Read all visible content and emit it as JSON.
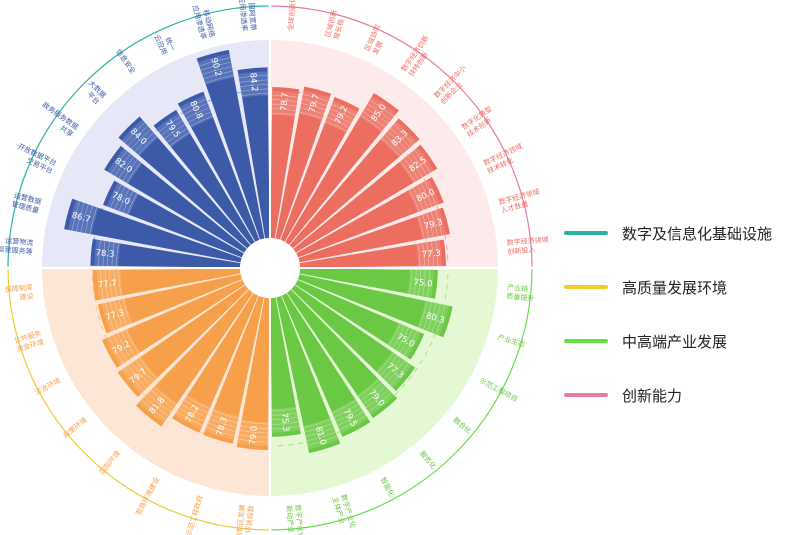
{
  "chart_data": {
    "type": "radial-bar",
    "title": "",
    "legend_position": "right",
    "groups": [
      {
        "name": "数字及信息化基础设施",
        "color": "#3d5aa8",
        "light": "#8da2dc",
        "bg": "#e6e8f8",
        "border": "#2bb3a2",
        "items": [
          {
            "label": "运营物流 运营服务等",
            "value": 78.3
          },
          {
            "label": "运营数据 管理质量",
            "value": 86.7
          },
          {
            "label": "开放数据平台 交易平台",
            "value": 78.0
          },
          {
            "label": "政务服务数据 共享",
            "value": 82.0
          },
          {
            "label": "大数据 平台",
            "value": 84.0
          },
          {
            "label": "信息安全",
            "value": 79.5
          },
          {
            "label": "统一 云应用",
            "value": 80.8
          },
          {
            "label": "移动网络 应用渗透率",
            "value": 90.2
          },
          {
            "label": "固网宽带 应用渗透率",
            "value": 84.2
          }
        ]
      },
      {
        "name": "创新能力",
        "color": "#ec6e60",
        "light": "#f4a79d",
        "bg": "#fdeaea",
        "border": "#e57ba2",
        "items": [
          {
            "label": "全球创新体系",
            "value": 78.7
          },
          {
            "label": "区域创新 增长极",
            "value": 79.7
          },
          {
            "label": "区域协同 发展",
            "value": 79.2
          },
          {
            "label": "数字经济创新 扶持创新",
            "value": 85.0
          },
          {
            "label": "数字经济中小 创新企业",
            "value": 83.3
          },
          {
            "label": "数字化转型 技术创新",
            "value": 82.5
          },
          {
            "label": "数字经济领域 技术转化",
            "value": 80.0
          },
          {
            "label": "数字经济领域 人才数量",
            "value": 79.3
          },
          {
            "label": "数字经济领域 创新投入",
            "value": 77.3
          }
        ]
      },
      {
        "name": "中高端产业发展",
        "color": "#6ac844",
        "light": "#a8e08c",
        "bg": "#e4f8d4",
        "border": "#66dd44",
        "items": [
          {
            "label": "产业链 质量提升",
            "value": 75.0
          },
          {
            "label": "产业生态",
            "value": 80.3
          },
          {
            "label": "示范工程项目",
            "value": 75.0
          },
          {
            "label": "融合化",
            "value": 77.3
          },
          {
            "label": "服务化",
            "value": 79.0
          },
          {
            "label": "智能化",
            "value": 79.5
          },
          {
            "label": "数字产业化 主体产业",
            "value": 81.0
          },
          {
            "label": "数字产业化 新动产业",
            "value": 75.3
          }
        ]
      },
      {
        "name": "高质量发展环境",
        "color": "#f7a04c",
        "light": "#f9c48a",
        "bg": "#fde6d6",
        "border": "#f0c93a",
        "items": [
          {
            "label": "高新区发展 环境指数",
            "value": 79.0
          },
          {
            "label": "示范工程政府",
            "value": 78.3
          },
          {
            "label": "营商环境建设",
            "value": 78.2
          },
          {
            "label": "国际环境",
            "value": 81.8
          },
          {
            "label": "政策环境",
            "value": 79.7
          },
          {
            "label": "法治环境",
            "value": 79.2
          },
          {
            "label": "公共服务 资金环境",
            "value": 77.3
          },
          {
            "label": "保障制度 建设",
            "value": 77.7
          }
        ]
      }
    ],
    "legend_order": [
      "数字及信息化基础设施",
      "高质量发展环境",
      "中高端产业发展",
      "创新能力"
    ]
  }
}
